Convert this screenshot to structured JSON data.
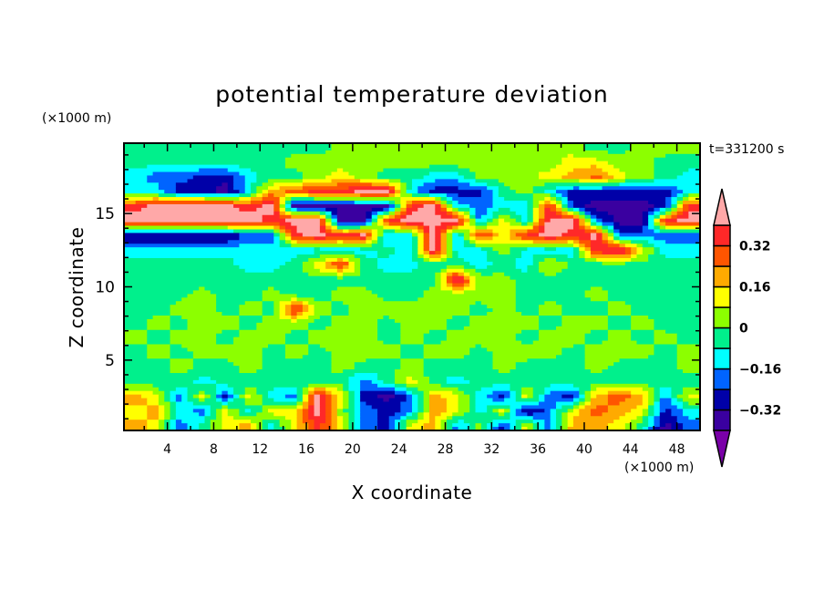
{
  "chart_data": {
    "type": "heatmap",
    "subtype": "filled-contour",
    "title": "potential temperature deviation",
    "xlabel": "X coordinate",
    "ylabel": "Z coordinate",
    "x_unit": "(×1000 m)",
    "y_unit": "(×1000 m)",
    "time_label": "t=331200 s",
    "xlim": [
      0.25,
      50
    ],
    "ylim": [
      0.2,
      19.8
    ],
    "x_ticks": [
      4,
      8,
      12,
      16,
      20,
      24,
      28,
      32,
      36,
      40,
      44,
      48
    ],
    "x_minor_step": 2,
    "y_ticks": [
      5,
      10,
      15
    ],
    "y_minor_step": 1,
    "levels": [
      -0.4,
      -0.32,
      -0.24,
      -0.16,
      -0.08,
      0,
      0.08,
      0.16,
      0.24,
      0.32,
      0.4
    ],
    "colors": [
      "#7a00a8",
      "#3a00a0",
      "#0000a8",
      "#0064ff",
      "#00ffff",
      "#00f08c",
      "#8cff00",
      "#ffff00",
      "#ffaa00",
      "#ff5500",
      "#ff2828",
      "#ffa8a8"
    ],
    "colorbar_labels": [
      {
        "value": 0.32,
        "text": "0.32"
      },
      {
        "value": 0.16,
        "text": "0.16"
      },
      {
        "value": 0,
        "text": "0"
      },
      {
        "value": -0.16,
        "text": "−0.16"
      },
      {
        "value": -0.32,
        "text": "−0.32"
      }
    ],
    "grid_x": [
      1,
      3,
      5,
      7,
      9,
      11,
      13,
      15,
      17,
      19,
      21,
      23,
      25,
      27,
      29,
      31,
      33,
      35,
      37,
      39,
      41,
      43,
      45,
      47,
      49
    ],
    "grid_z": [
      19.5,
      18.5,
      17.5,
      16.5,
      15.5,
      14.5,
      13.5,
      12.5,
      11.5,
      10.5,
      9.5,
      8.5,
      7.5,
      6.5,
      5.5,
      4.5,
      3.5,
      2.5,
      1.5,
      0.5
    ],
    "values": [
      [
        -0.04,
        -0.04,
        -0.04,
        -0.04,
        -0.04,
        -0.04,
        -0.04,
        -0.04,
        -0.04,
        0.04,
        0.04,
        0.04,
        0.04,
        0.04,
        0.04,
        0.04,
        0.04,
        0.04,
        0.04,
        0.04,
        -0.04,
        -0.04,
        0.04,
        0.04,
        0.04
      ],
      [
        -0.04,
        -0.04,
        -0.04,
        -0.04,
        -0.04,
        -0.04,
        -0.04,
        0.04,
        0.04,
        0.04,
        0.04,
        0.04,
        0.04,
        0.04,
        0.04,
        0.04,
        0.04,
        0.04,
        0.04,
        0.12,
        0.12,
        0.04,
        0.04,
        -0.04,
        -0.04
      ],
      [
        -0.12,
        -0.2,
        -0.2,
        -0.28,
        -0.28,
        -0.12,
        -0.04,
        -0.04,
        0.04,
        0.12,
        0.04,
        -0.04,
        -0.04,
        -0.12,
        -0.12,
        0.04,
        0.04,
        0.04,
        0.12,
        0.2,
        0.28,
        0.12,
        0.04,
        -0.04,
        -0.12
      ],
      [
        -0.12,
        -0.12,
        -0.28,
        -0.28,
        -0.36,
        -0.12,
        0.2,
        0.28,
        0.36,
        0.36,
        0.45,
        0.45,
        -0.12,
        -0.28,
        -0.28,
        -0.28,
        -0.04,
        0.04,
        -0.12,
        -0.28,
        -0.28,
        -0.28,
        -0.28,
        -0.28,
        -0.12
      ],
      [
        0.36,
        0.45,
        0.45,
        0.45,
        0.45,
        0.36,
        0.45,
        -0.36,
        -0.36,
        -0.36,
        -0.36,
        -0.36,
        0.36,
        0.45,
        -0.12,
        -0.2,
        -0.12,
        -0.12,
        0.36,
        -0.28,
        -0.36,
        -0.36,
        -0.36,
        -0.28,
        0.36
      ],
      [
        0.45,
        0.45,
        0.45,
        0.45,
        0.45,
        0.45,
        0.36,
        0.45,
        0.45,
        -0.36,
        -0.36,
        0.36,
        0.45,
        0.45,
        0.45,
        -0.2,
        0.12,
        -0.12,
        0.45,
        0.45,
        -0.2,
        -0.36,
        -0.36,
        0.36,
        0.45
      ],
      [
        -0.36,
        -0.36,
        -0.36,
        -0.36,
        -0.36,
        -0.2,
        -0.2,
        0.36,
        0.45,
        0.36,
        0.45,
        -0.2,
        -0.12,
        0.45,
        -0.2,
        0.36,
        0.12,
        0.36,
        0.45,
        0.36,
        0.45,
        -0.2,
        -0.2,
        -0.2,
        -0.2
      ],
      [
        -0.12,
        -0.12,
        -0.12,
        -0.12,
        -0.12,
        -0.12,
        -0.12,
        -0.12,
        -0.12,
        -0.12,
        -0.12,
        -0.04,
        -0.12,
        0.45,
        -0.12,
        -0.12,
        0.04,
        -0.12,
        -0.12,
        -0.12,
        0.36,
        0.45,
        0.12,
        -0.12,
        -0.12
      ],
      [
        -0.04,
        -0.04,
        -0.04,
        -0.04,
        -0.04,
        -0.12,
        -0.12,
        -0.04,
        0.12,
        0.36,
        -0.04,
        -0.12,
        -0.12,
        -0.04,
        -0.04,
        -0.12,
        -0.04,
        -0.12,
        0.12,
        -0.04,
        -0.04,
        -0.04,
        -0.04,
        -0.04,
        -0.04
      ],
      [
        -0.04,
        -0.04,
        -0.04,
        -0.04,
        -0.04,
        -0.04,
        -0.04,
        -0.04,
        -0.04,
        -0.04,
        -0.04,
        -0.04,
        -0.04,
        -0.04,
        0.45,
        0.04,
        0.04,
        -0.04,
        -0.04,
        -0.04,
        -0.04,
        -0.04,
        -0.04,
        -0.04,
        -0.04
      ],
      [
        -0.04,
        -0.04,
        -0.04,
        0.04,
        -0.04,
        -0.04,
        0.04,
        -0.04,
        -0.04,
        0.04,
        0.04,
        -0.04,
        -0.04,
        0.04,
        0.04,
        0.04,
        0.04,
        -0.04,
        -0.04,
        -0.04,
        0.04,
        -0.04,
        -0.04,
        -0.04,
        -0.04
      ],
      [
        -0.04,
        -0.04,
        0.04,
        0.04,
        -0.04,
        0.04,
        -0.04,
        0.36,
        0.04,
        -0.04,
        0.04,
        0.04,
        0.04,
        0.04,
        0.04,
        -0.04,
        0.04,
        -0.04,
        0.04,
        -0.04,
        -0.04,
        0.04,
        -0.04,
        -0.04,
        -0.04
      ],
      [
        -0.04,
        0.04,
        -0.04,
        0.04,
        0.04,
        -0.04,
        0.04,
        0.04,
        -0.04,
        0.04,
        0.04,
        -0.04,
        0.04,
        0.04,
        -0.04,
        0.04,
        0.04,
        0.04,
        -0.04,
        0.04,
        0.04,
        -0.04,
        0.04,
        -0.04,
        -0.04
      ],
      [
        0.04,
        -0.04,
        0.04,
        0.04,
        -0.04,
        0.04,
        0.04,
        -0.04,
        0.04,
        0.04,
        0.04,
        -0.04,
        0.04,
        -0.04,
        0.04,
        0.04,
        0.04,
        -0.04,
        0.04,
        0.04,
        -0.04,
        0.04,
        -0.04,
        0.04,
        -0.04
      ],
      [
        -0.04,
        0.04,
        -0.04,
        0.04,
        0.04,
        0.04,
        -0.04,
        0.04,
        -0.04,
        0.04,
        0.04,
        0.04,
        -0.04,
        0.04,
        0.04,
        -0.04,
        0.04,
        0.04,
        0.04,
        -0.04,
        0.04,
        0.04,
        0.04,
        -0.04,
        0.04
      ],
      [
        -0.04,
        -0.04,
        0.04,
        -0.04,
        -0.04,
        0.04,
        -0.04,
        -0.04,
        -0.04,
        0.04,
        -0.04,
        -0.04,
        0.04,
        -0.04,
        -0.04,
        -0.04,
        0.04,
        -0.04,
        -0.04,
        -0.04,
        0.04,
        -0.04,
        -0.04,
        -0.04,
        0.04
      ],
      [
        -0.04,
        -0.04,
        -0.04,
        -0.12,
        -0.04,
        -0.04,
        -0.04,
        -0.04,
        -0.04,
        -0.04,
        -0.2,
        -0.04,
        0.12,
        -0.04,
        -0.12,
        -0.04,
        -0.04,
        -0.04,
        -0.04,
        -0.04,
        -0.04,
        -0.04,
        -0.04,
        -0.04,
        -0.04
      ],
      [
        0.2,
        0.12,
        -0.2,
        0.12,
        -0.28,
        0.12,
        -0.12,
        -0.2,
        0.45,
        0.12,
        -0.28,
        -0.36,
        -0.2,
        0.2,
        0.12,
        -0.12,
        -0.28,
        0.12,
        -0.2,
        -0.28,
        0.2,
        0.28,
        0.2,
        -0.2,
        0.12
      ],
      [
        0.12,
        0.2,
        -0.12,
        -0.2,
        0.12,
        -0.12,
        0.12,
        0.12,
        0.45,
        0.04,
        -0.2,
        -0.28,
        -0.2,
        0.2,
        0.12,
        -0.12,
        0.12,
        -0.36,
        -0.2,
        0.12,
        0.28,
        0.2,
        0.12,
        -0.28,
        -0.12
      ],
      [
        0.2,
        0.12,
        -0.2,
        -0.04,
        0.12,
        0.2,
        -0.12,
        0.12,
        0.36,
        0.12,
        -0.2,
        -0.28,
        0.12,
        0.2,
        -0.2,
        0.04,
        -0.28,
        0.12,
        -0.2,
        0.2,
        0.2,
        0.12,
        -0.04,
        -0.36,
        -0.2
      ]
    ]
  }
}
